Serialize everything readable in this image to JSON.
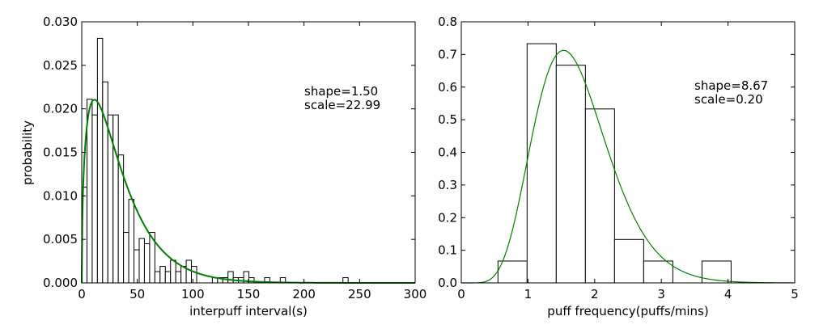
{
  "chart_data": [
    {
      "type": "histogram",
      "xlabel": "interpuff interval(s)",
      "ylabel": "probability",
      "xlim": [
        0,
        300
      ],
      "ylim": [
        0,
        0.03
      ],
      "xticks": [
        "0",
        "50",
        "100",
        "150",
        "200",
        "250",
        "300"
      ],
      "yticks": [
        "0.000",
        "0.005",
        "0.010",
        "0.015",
        "0.020",
        "0.025",
        "0.030"
      ],
      "annotation": [
        "shape=1.50",
        "scale=22.99"
      ],
      "bin_width": 4.7,
      "bins": [
        {
          "x": 0,
          "y": 0.011
        },
        {
          "x": 4.7,
          "y": 0.0211
        },
        {
          "x": 9.4,
          "y": 0.0193
        },
        {
          "x": 14.1,
          "y": 0.0281
        },
        {
          "x": 18.8,
          "y": 0.0231
        },
        {
          "x": 23.5,
          "y": 0.0193
        },
        {
          "x": 28.2,
          "y": 0.0193
        },
        {
          "x": 32.9,
          "y": 0.0147
        },
        {
          "x": 37.6,
          "y": 0.0058
        },
        {
          "x": 42.3,
          "y": 0.0096
        },
        {
          "x": 47.0,
          "y": 0.0038
        },
        {
          "x": 51.7,
          "y": 0.0051
        },
        {
          "x": 56.4,
          "y": 0.0045
        },
        {
          "x": 61.1,
          "y": 0.0058
        },
        {
          "x": 65.8,
          "y": 0.0013
        },
        {
          "x": 70.5,
          "y": 0.0019
        },
        {
          "x": 75.2,
          "y": 0.0013
        },
        {
          "x": 79.9,
          "y": 0.0026
        },
        {
          "x": 84.6,
          "y": 0.0013
        },
        {
          "x": 89.3,
          "y": 0.0019
        },
        {
          "x": 94.0,
          "y": 0.0026
        },
        {
          "x": 98.7,
          "y": 0.0019
        },
        {
          "x": 117.5,
          "y": 0.0006
        },
        {
          "x": 122.2,
          "y": 0.0006
        },
        {
          "x": 126.9,
          "y": 0.0006
        },
        {
          "x": 131.6,
          "y": 0.0013
        },
        {
          "x": 136.3,
          "y": 0.0006
        },
        {
          "x": 141.0,
          "y": 0.0006
        },
        {
          "x": 145.7,
          "y": 0.0013
        },
        {
          "x": 150.4,
          "y": 0.0006
        },
        {
          "x": 164.5,
          "y": 0.0006
        },
        {
          "x": 178.6,
          "y": 0.0006
        },
        {
          "x": 235.0,
          "y": 0.0006
        }
      ],
      "fit": {
        "distribution": "gamma",
        "shape": 1.5,
        "scale": 22.99,
        "color": "#008000"
      }
    },
    {
      "type": "histogram",
      "xlabel": "puff frequency(puffs/mins)",
      "ylabel": "",
      "xlim": [
        0,
        5
      ],
      "ylim": [
        0,
        0.8
      ],
      "xticks": [
        "0",
        "1",
        "2",
        "3",
        "4",
        "5"
      ],
      "yticks": [
        "0.0",
        "0.1",
        "0.2",
        "0.3",
        "0.4",
        "0.5",
        "0.6",
        "0.7",
        "0.8"
      ],
      "annotation": [
        "shape=8.67",
        "scale=0.20"
      ],
      "bin_width": 0.437,
      "bins": [
        {
          "x": 0.55,
          "y": 0.067
        },
        {
          "x": 0.987,
          "y": 0.733
        },
        {
          "x": 1.424,
          "y": 0.667
        },
        {
          "x": 1.861,
          "y": 0.533
        },
        {
          "x": 2.298,
          "y": 0.133
        },
        {
          "x": 2.735,
          "y": 0.067
        },
        {
          "x": 3.609,
          "y": 0.067
        }
      ],
      "fit": {
        "distribution": "gamma",
        "shape": 8.67,
        "scale": 0.2,
        "color": "#008000"
      }
    }
  ]
}
